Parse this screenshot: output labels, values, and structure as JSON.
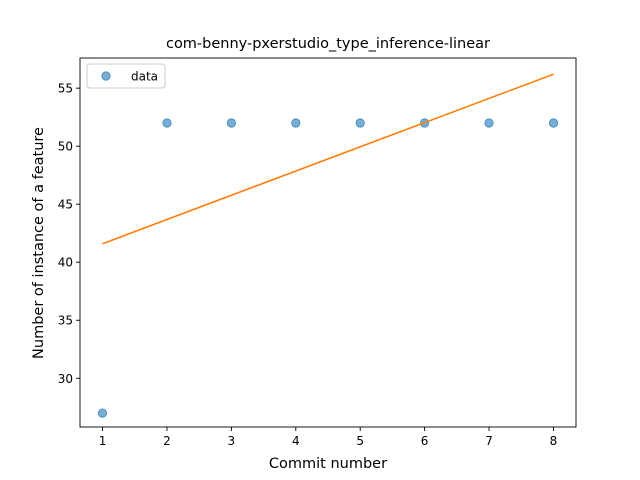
{
  "chart_data": {
    "type": "scatter",
    "title": "com-benny-pxerstudio_type_inference-linear",
    "xlabel": "Commit number",
    "ylabel": "Number of instance of a feature",
    "xlim": [
      0.65,
      8.35
    ],
    "ylim": [
      25.8,
      57.6
    ],
    "xticks": [
      1,
      2,
      3,
      4,
      5,
      6,
      7,
      8
    ],
    "yticks": [
      30,
      35,
      40,
      45,
      50,
      55
    ],
    "grid": false,
    "legend_position": "top-left",
    "series": [
      {
        "name": "data",
        "kind": "scatter",
        "color": "#1f77b4",
        "x": [
          1,
          2,
          3,
          4,
          5,
          6,
          7,
          8
        ],
        "y": [
          27,
          52,
          52,
          52,
          52,
          52,
          52,
          52
        ]
      },
      {
        "kind": "line",
        "color": "#ff7f0e",
        "x": [
          1,
          8
        ],
        "y": [
          41.6,
          56.2
        ]
      }
    ]
  }
}
